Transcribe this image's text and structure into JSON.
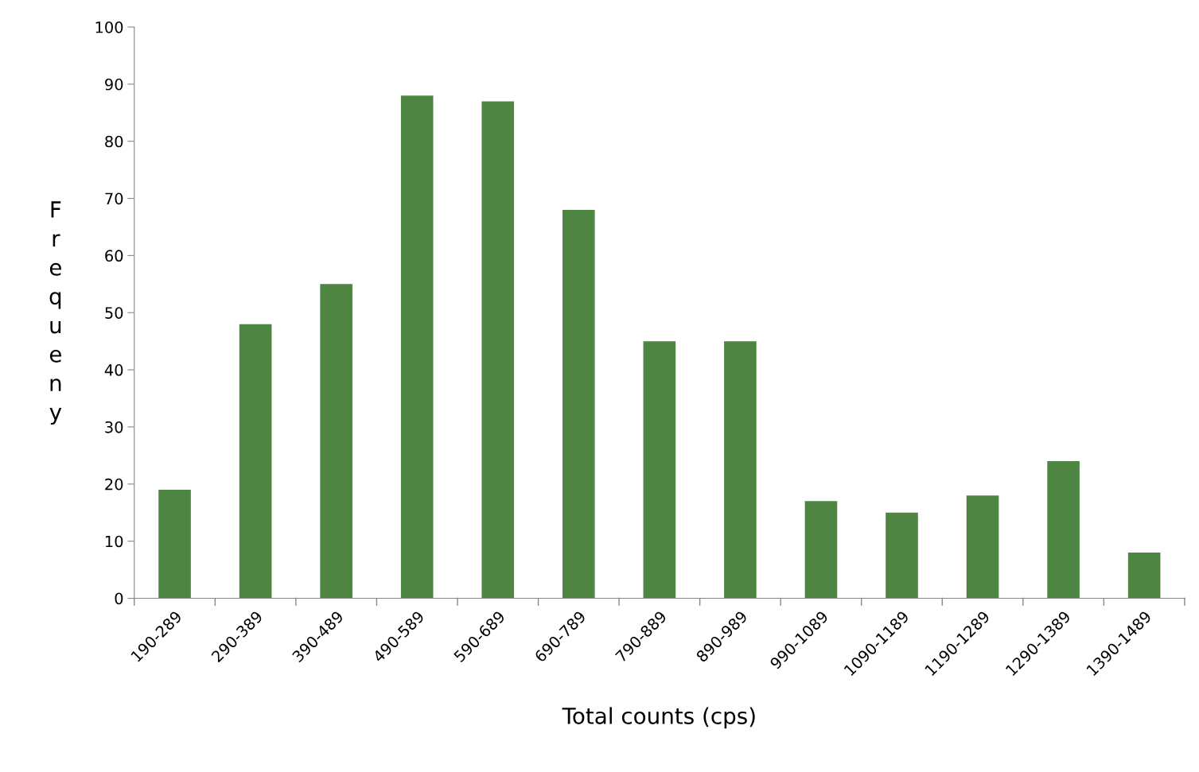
{
  "chart_data": {
    "type": "bar",
    "xlabel": "Total counts (cps)",
    "ylabel": "Frequeny",
    "categories": [
      "190-289",
      "290-389",
      "390-489",
      "490-589",
      "590-689",
      "690-789",
      "790-889",
      "890-989",
      "990-1089",
      "1090-1189",
      "1190-1289",
      "1290-1389",
      "1390-1489"
    ],
    "values": [
      19,
      48,
      55,
      88,
      87,
      68,
      45,
      45,
      17,
      15,
      18,
      24,
      8
    ],
    "color": "#4e8542",
    "ylim": [
      0,
      100
    ],
    "yticks": [
      0,
      10,
      20,
      30,
      40,
      50,
      60,
      70,
      80,
      90,
      100
    ],
    "grid": false
  }
}
